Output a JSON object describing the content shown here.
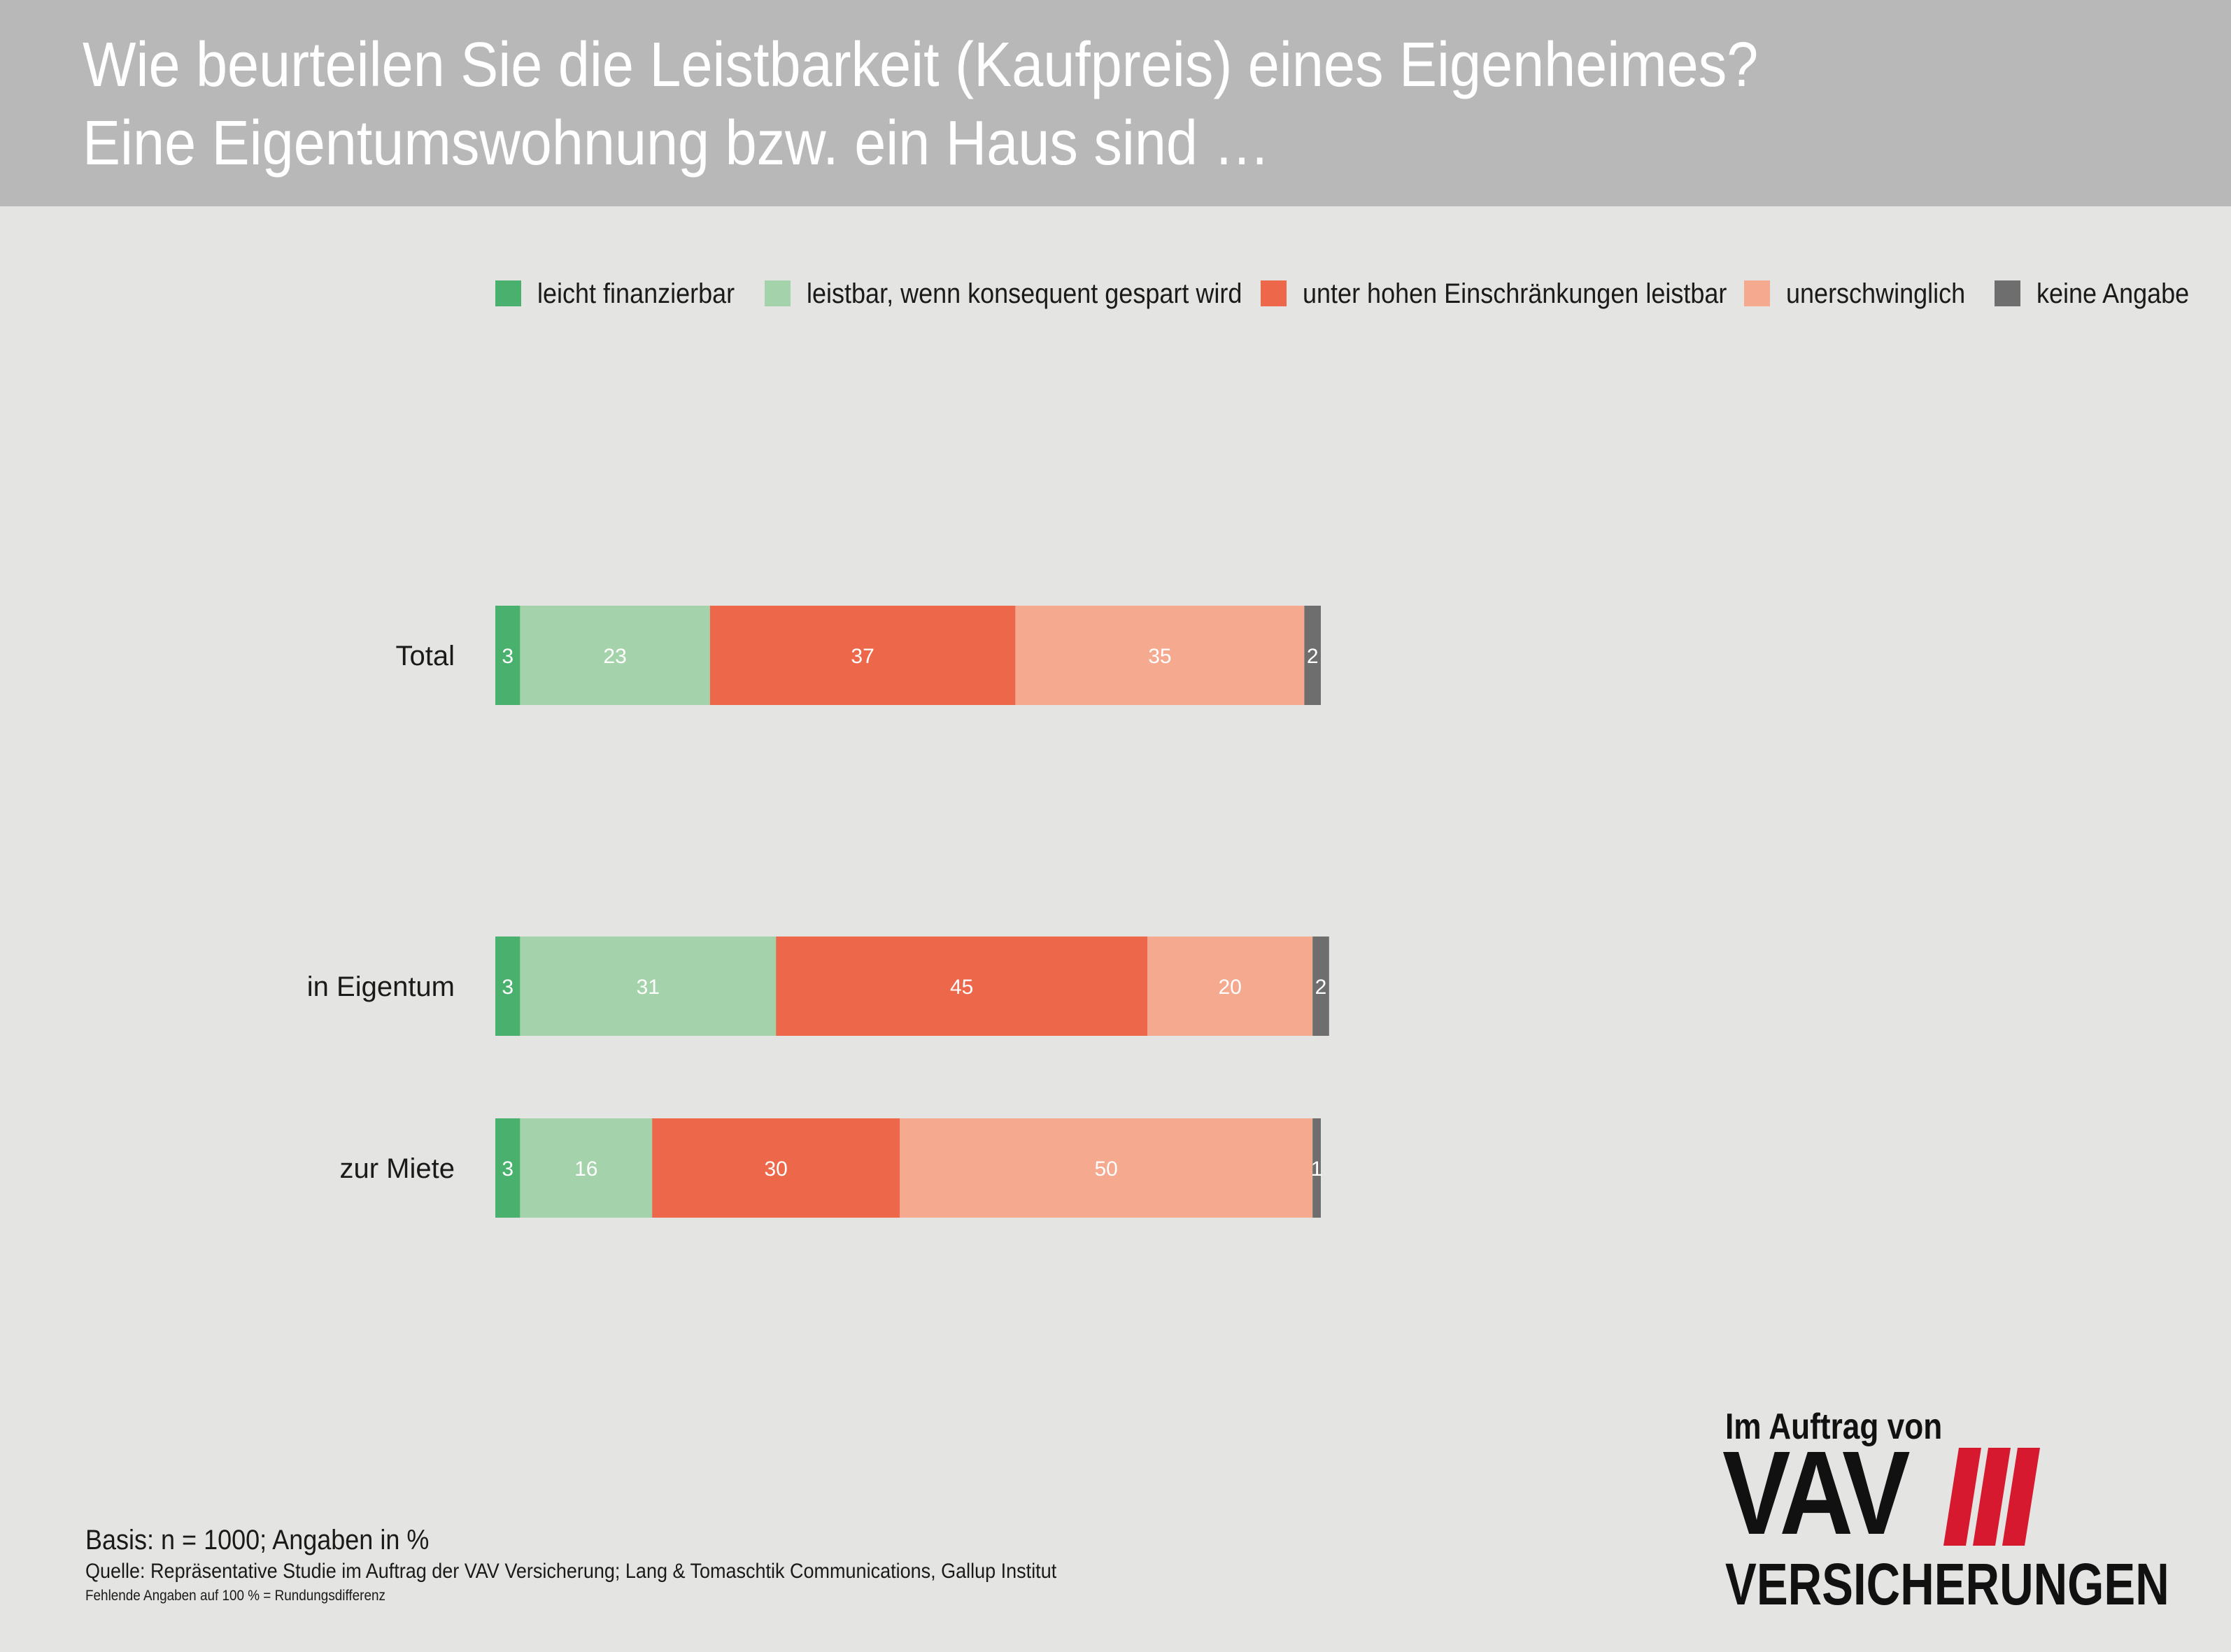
{
  "header": {
    "title_line1": "Wie beurteilen Sie die Leistbarkeit (Kaufpreis) eines Eigenheimes?",
    "title_line2": "Eine Eigentumswohnung bzw. ein Haus sind …"
  },
  "legend": [
    {
      "label": "leicht finanzierbar",
      "color": "#49b06e"
    },
    {
      "label": "leistbar, wenn konsequent gespart wird",
      "color": "#a4d3ab"
    },
    {
      "label": "unter hohen Einschränkungen leistbar",
      "color": "#ed684b"
    },
    {
      "label": "unerschwinglich",
      "color": "#f5a98f"
    },
    {
      "label": "keine Angabe",
      "color": "#6e6e6e"
    }
  ],
  "chart_data": {
    "type": "bar",
    "orientation": "horizontal",
    "stacked": true,
    "unit": "%",
    "categories": [
      "Total",
      "in Eigentum",
      "zur Miete"
    ],
    "series": [
      {
        "name": "leicht finanzierbar",
        "color": "#49b06e",
        "values": [
          3,
          3,
          3
        ]
      },
      {
        "name": "leistbar, wenn konsequent gespart wird",
        "color": "#a4d3ab",
        "values": [
          23,
          31,
          16
        ]
      },
      {
        "name": "unter hohen Einschränkungen leistbar",
        "color": "#ed684b",
        "values": [
          37,
          45,
          30
        ]
      },
      {
        "name": "unerschwinglich",
        "color": "#f5a98f",
        "values": [
          35,
          20,
          50
        ]
      },
      {
        "name": "keine Angabe",
        "color": "#6e6e6e",
        "values": [
          2,
          2,
          1
        ]
      }
    ],
    "legend_position": "top",
    "grid": false
  },
  "footer": {
    "basis": "Basis: n = 1000; Angaben in %",
    "source": "Quelle: Repräsentative Studie im Auftrag der VAV Versicherung; Lang & Tomaschtik Communications, Gallup Institut",
    "note": "Fehlende Angaben auf 100 % = Rundungsdifferenz"
  },
  "logo": {
    "top_text": "Im Auftrag von",
    "brand": "VAV",
    "bottom_text": "VERSICHERUNGEN",
    "accent_color": "#d7192f"
  }
}
